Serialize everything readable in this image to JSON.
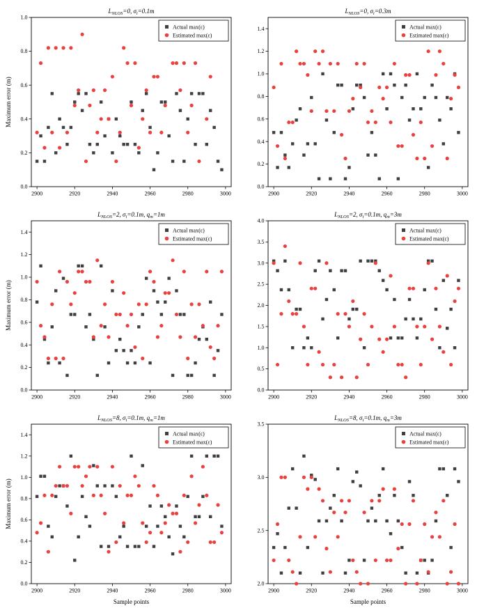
{
  "page": {
    "background": "#ffffff"
  },
  "figure": {
    "ylabel": "Maximum error (m)",
    "xlabel": "Sample points",
    "legend": {
      "actual": "Actual max(ε)",
      "estimated": "Estimated max(ε)"
    },
    "colors": {
      "actual": "#3f3f3f",
      "estimated": "#e8413e",
      "axis": "#000000"
    },
    "x": {
      "start": 2900,
      "step": 2,
      "lim": [
        2897,
        3003
      ],
      "ticks": [
        2900,
        2920,
        2940,
        2960,
        2980,
        3000
      ]
    }
  },
  "chart_data": [
    {
      "type": "scatter",
      "title": "L_{NLOS}=0, σ_{i}=0.1m",
      "ylabel": "Maximum error (m)",
      "xlabel": "",
      "ylim": [
        0,
        1.0
      ],
      "yticks": [
        0.0,
        0.2,
        0.4,
        0.6,
        0.8,
        1.0
      ],
      "legend_position": "top-right",
      "grid": false,
      "series": [
        {
          "name": "Actual max(ε)",
          "marker": "square",
          "color": "#3f3f3f",
          "y": [
            0.15,
            0.3,
            0.15,
            0.35,
            0.55,
            0.2,
            0.4,
            0.35,
            0.25,
            0.35,
            0.5,
            0.55,
            0.45,
            0.55,
            0.25,
            0.2,
            0.25,
            0.5,
            0.3,
            0.4,
            0.2,
            0.4,
            0.3,
            0.25,
            0.25,
            0.5,
            0.25,
            0.2,
            0.45,
            0.55,
            0.35,
            0.1,
            0.2,
            0.5,
            0.5,
            0.3,
            0.15,
            0.55,
            0.45,
            0.15,
            0.4,
            0.55,
            0.25,
            0.55,
            0.55,
            0.25,
            0.45,
            0.35,
            0.15,
            0.1
          ]
        },
        {
          "name": "Estimated max(ε)",
          "marker": "circle",
          "color": "#e8413e",
          "y": [
            0.32,
            0.73,
            0.23,
            0.82,
            0.32,
            0.82,
            0.23,
            0.82,
            0.32,
            0.82,
            0.48,
            0.57,
            0.9,
            0.15,
            0.48,
            0.57,
            0.32,
            0.4,
            0.57,
            0.4,
            0.65,
            0.15,
            0.32,
            0.82,
            0.73,
            0.48,
            0.73,
            0.23,
            0.4,
            0.57,
            0.32,
            0.65,
            0.65,
            0.32,
            0.48,
            0.9,
            0.73,
            0.73,
            0.57,
            0.73,
            0.32,
            0.48,
            0.73,
            0.15,
            0.9,
            0.4,
            0.65,
            0.9,
            0.9,
            0.9
          ]
        }
      ]
    },
    {
      "type": "scatter",
      "title": "L_{NLOS}=0, σ_{i}=0.3m",
      "ylabel": "",
      "xlabel": "",
      "ylim": [
        0,
        1.5
      ],
      "yticks": [
        0.0,
        0.2,
        0.4,
        0.6,
        0.8,
        1.0,
        1.2,
        1.4
      ],
      "legend_position": "top-right",
      "grid": false,
      "series": [
        {
          "name": "Actual max(ε)",
          "marker": "square",
          "color": "#3f3f3f",
          "y": [
            0.48,
            0.17,
            0.48,
            0.28,
            0.17,
            0.38,
            0.59,
            0.69,
            0.28,
            0.38,
            0.79,
            0.38,
            0.07,
            1.0,
            0.59,
            0.07,
            0.48,
            0.9,
            0.9,
            0.07,
            0.17,
            0.69,
            0.9,
            0.9,
            0.79,
            0.28,
            0.48,
            0.28,
            0.07,
            1.0,
            0.69,
            1.0,
            0.9,
            0.07,
            0.79,
            0.9,
            0.59,
            0.69,
            1.0,
            0.69,
            0.79,
            0.17,
            0.9,
            0.79,
            0.59,
            0.38,
            0.79,
            0.69,
            1.0,
            0.48
          ]
        },
        {
          "name": "Estimated max(ε)",
          "marker": "circle",
          "color": "#e8413e",
          "y": [
            0.88,
            0.36,
            1.09,
            0.25,
            0.57,
            0.57,
            1.2,
            1.09,
            1.09,
            0.99,
            0.67,
            1.2,
            1.09,
            1.2,
            0.67,
            1.09,
            0.67,
            1.09,
            0.46,
            0.25,
            0.67,
            0.78,
            1.09,
            0.88,
            1.09,
            0.57,
            0.67,
            0.57,
            0.88,
            0.78,
            0.88,
            0.57,
            1.09,
            0.36,
            0.36,
            0.99,
            0.99,
            0.46,
            0.25,
            0.57,
            0.25,
            1.2,
            0.36,
            0.99,
            1.2,
            1.09,
            0.25,
            0.78,
            0.99,
            0.88
          ]
        }
      ]
    },
    {
      "type": "scatter",
      "title": "L_{NLOS}=2, σ_{i}=0.1m, q_{m}=1m",
      "ylabel": "Maximum error (m)",
      "xlabel": "",
      "ylim": [
        0,
        1.5
      ],
      "yticks": [
        0.0,
        0.2,
        0.4,
        0.6,
        0.8,
        1.0,
        1.2,
        1.4
      ],
      "legend_position": "top-right",
      "grid": false,
      "series": [
        {
          "name": "Actual max(ε)",
          "marker": "square",
          "color": "#3f3f3f",
          "y": [
            0.78,
            1.1,
            0.45,
            0.24,
            0.56,
            0.88,
            0.24,
            0.99,
            0.13,
            0.67,
            0.67,
            1.1,
            1.1,
            0.56,
            0.67,
            0.45,
            0.13,
            1.1,
            0.56,
            0.24,
            0.88,
            0.35,
            0.45,
            0.35,
            0.24,
            0.35,
            0.24,
            0.56,
            0.67,
            0.99,
            0.24,
            0.88,
            0.78,
            0.67,
            0.78,
            0.99,
            0.13,
            0.88,
            0.67,
            0.67,
            0.13,
            0.13,
            0.24,
            0.45,
            0.56,
            0.45,
            0.78,
            0.13,
            0.35,
            0.67
          ]
        },
        {
          "name": "Estimated max(ε)",
          "marker": "circle",
          "color": "#e8413e",
          "y": [
            0.96,
            0.57,
            0.47,
            0.28,
            0.76,
            0.28,
            1.05,
            0.28,
            0.96,
            0.76,
            0.86,
            1.05,
            1.05,
            0.96,
            0.96,
            0.47,
            1.15,
            0.57,
            0.76,
            0.47,
            0.96,
            0.67,
            0.67,
            0.86,
            0.57,
            0.67,
            0.38,
            0.76,
            0.28,
            0.76,
            1.05,
            0.96,
            0.47,
            0.57,
            0.86,
            0.86,
            1.15,
            0.67,
            0.47,
            1.05,
            0.28,
            0.76,
            0.47,
            0.76,
            0.57,
            1.05,
            0.38,
            0.28,
            0.57,
            1.05
          ]
        }
      ]
    },
    {
      "type": "scatter",
      "title": "L_{NLOS}=2, σ_{i}=0.1m, q_{m}=3m",
      "ylabel": "",
      "xlabel": "",
      "ylim": [
        0,
        4.0
      ],
      "yticks": [
        0.0,
        0.5,
        1.0,
        1.5,
        2.0,
        2.5,
        3.0,
        3.5,
        4.0
      ],
      "legend_position": "top-right",
      "grid": false,
      "series": [
        {
          "name": "Actual max(ε)",
          "marker": "square",
          "color": "#3f3f3f",
          "y": [
            3.05,
            2.82,
            2.37,
            3.05,
            2.37,
            1.0,
            1.91,
            1.91,
            1.0,
            1.23,
            1.0,
            2.82,
            3.05,
            1.68,
            2.14,
            2.82,
            2.37,
            1.23,
            2.82,
            2.82,
            1.68,
            1.91,
            1.91,
            3.05,
            1.0,
            3.05,
            3.05,
            3.05,
            2.82,
            2.59,
            2.37,
            1.23,
            2.14,
            1.23,
            1.23,
            1.68,
            2.14,
            1.68,
            1.23,
            1.68,
            2.37,
            3.05,
            3.05,
            1.91,
            1.0,
            2.59,
            1.46,
            1.91,
            1.0,
            2.59
          ]
        },
        {
          "name": "Estimated max(ε)",
          "marker": "circle",
          "color": "#e8413e",
          "y": [
            3.0,
            0.6,
            1.8,
            3.4,
            2.1,
            1.8,
            1.8,
            3.0,
            1.5,
            0.6,
            2.4,
            2.4,
            0.9,
            0.6,
            3.0,
            0.3,
            0.6,
            1.8,
            0.3,
            1.8,
            1.5,
            2.1,
            0.3,
            1.2,
            1.8,
            0.6,
            1.5,
            3.0,
            1.2,
            0.9,
            1.2,
            2.7,
            1.5,
            0.6,
            0.6,
            0.3,
            2.4,
            2.4,
            1.5,
            0.6,
            1.5,
            3.0,
            1.2,
            2.4,
            1.5,
            0.9,
            2.7,
            0.6,
            2.1,
            2.4
          ]
        }
      ]
    },
    {
      "type": "scatter",
      "title": "L_{NLOS}=8, σ_{i}=0.1m, q_{m}=1m",
      "ylabel": "Maximum error (m)",
      "xlabel": "Sample points",
      "ylim": [
        0,
        1.5
      ],
      "yticks": [
        0.0,
        0.2,
        0.4,
        0.6,
        0.8,
        1.0,
        1.2,
        1.4
      ],
      "legend_position": "top-right",
      "grid": false,
      "series": [
        {
          "name": "Actual max(ε)",
          "marker": "square",
          "color": "#3f3f3f",
          "y": [
            0.82,
            1.01,
            1.01,
            0.54,
            0.44,
            0.82,
            0.92,
            0.92,
            0.73,
            1.2,
            0.22,
            0.44,
            0.82,
            0.63,
            0.54,
            1.11,
            0.92,
            0.35,
            0.92,
            0.35,
            0.92,
            0.82,
            0.44,
            0.54,
            0.35,
            1.2,
            0.35,
            0.35,
            1.11,
            0.54,
            0.73,
            0.35,
            0.54,
            0.73,
            0.63,
            0.44,
            0.28,
            0.73,
            0.54,
            0.44,
            0.82,
            1.2,
            0.63,
            0.63,
            0.82,
            1.2,
            0.63,
            1.2,
            1.2,
            0.54
          ]
        },
        {
          "name": "Estimated max(ε)",
          "marker": "circle",
          "color": "#e8413e",
          "y": [
            0.48,
            0.57,
            0.83,
            0.3,
            0.83,
            0.92,
            1.1,
            0.92,
            0.92,
            0.66,
            1.1,
            1.1,
            0.92,
            1.01,
            1.1,
            0.83,
            1.1,
            0.83,
            0.66,
            0.3,
            1.1,
            0.39,
            0.92,
            0.57,
            0.83,
            0.83,
            1.01,
            0.92,
            0.57,
            0.39,
            0.48,
            0.92,
            0.83,
            0.48,
            0.57,
            0.74,
            0.66,
            0.66,
            0.3,
            0.83,
            0.39,
            1.01,
            0.57,
            0.74,
            1.1,
            0.83,
            0.39,
            0.39,
            0.74,
            0.48
          ]
        }
      ]
    },
    {
      "type": "scatter",
      "title": "L_{NLOS}=8, σ_{i}=0.1m, q_{m}=3m",
      "ylabel": "",
      "xlabel": "Sample points",
      "ylim": [
        2.0,
        3.5
      ],
      "yticks": [
        2.0,
        2.5,
        3.0,
        3.5
      ],
      "legend_position": "top-right",
      "grid": false,
      "series": [
        {
          "name": "Actual max(ε)",
          "marker": "square",
          "color": "#3f3f3f",
          "y": [
            2.34,
            2.47,
            2.1,
            2.34,
            2.71,
            3.08,
            2.71,
            2.1,
            3.2,
            2.34,
            3.02,
            2.98,
            2.59,
            2.1,
            2.59,
            2.71,
            2.83,
            3.08,
            2.59,
            2.1,
            2.22,
            2.96,
            3.05,
            2.92,
            2.22,
            2.59,
            2.71,
            2.59,
            2.83,
            3.08,
            2.59,
            2.47,
            2.83,
            2.59,
            2.34,
            2.1,
            2.96,
            2.83,
            2.1,
            2.22,
            2.22,
            2.1,
            2.22,
            2.59,
            3.08,
            3.08,
            2.83,
            2.34,
            3.08,
            2.96
          ]
        },
        {
          "name": "Estimated max(ε)",
          "marker": "circle",
          "color": "#e8413e",
          "y": [
            2.22,
            2.56,
            3.0,
            3.0,
            2.22,
            2.11,
            2.0,
            2.44,
            3.0,
            2.89,
            3.0,
            2.44,
            2.89,
            2.78,
            2.33,
            2.11,
            2.67,
            2.44,
            2.78,
            2.67,
            2.78,
            2.22,
            2.11,
            2.0,
            2.67,
            2.0,
            2.78,
            2.22,
            2.78,
            2.89,
            2.22,
            2.22,
            2.89,
            2.33,
            2.56,
            2.0,
            2.56,
            2.78,
            2.0,
            2.22,
            2.56,
            2.11,
            2.44,
            2.67,
            2.44,
            2.78,
            2.0,
            2.11,
            2.56,
            2.0
          ]
        }
      ]
    }
  ]
}
